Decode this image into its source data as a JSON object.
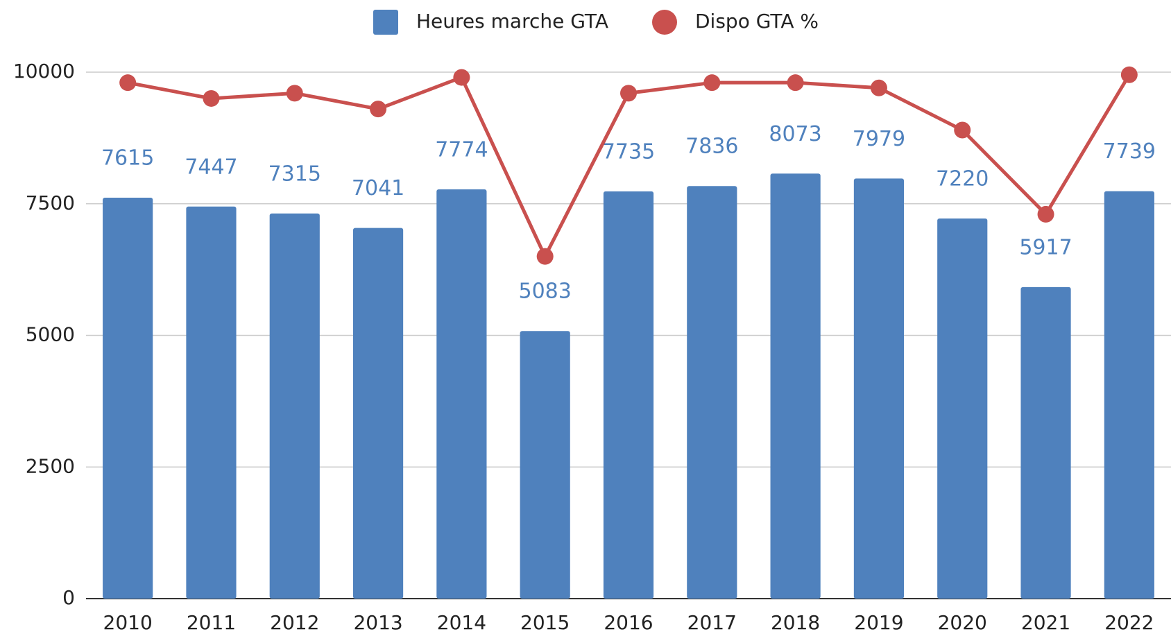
{
  "chart_data": {
    "type": "bar",
    "categories": [
      "2010",
      "2011",
      "2012",
      "2013",
      "2014",
      "2015",
      "2016",
      "2017",
      "2018",
      "2019",
      "2020",
      "2021",
      "2022"
    ],
    "series": [
      {
        "name": "Heures marche GTA",
        "type": "bar",
        "color": "#4f81bd",
        "values": [
          7615,
          7447,
          7315,
          7041,
          7774,
          5083,
          7735,
          7836,
          8073,
          7979,
          7220,
          5917,
          7739
        ]
      },
      {
        "name": "Dispo GTA %",
        "type": "line",
        "color": "#c9504e",
        "values": [
          9800,
          9500,
          9600,
          9300,
          9900,
          6500,
          9600,
          9800,
          9800,
          9700,
          8900,
          7300,
          9950
        ]
      }
    ],
    "ylim": [
      0,
      10000
    ],
    "yticks": [
      0,
      2500,
      5000,
      7500,
      10000
    ],
    "grid": true,
    "legend": "top"
  }
}
